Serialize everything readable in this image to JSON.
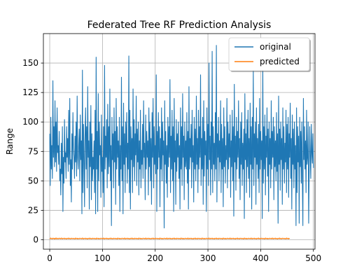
{
  "chart_data": {
    "type": "line",
    "title": "Federated Tree RF Prediction Analysis",
    "xlabel": "",
    "ylabel": "Range",
    "xlim": [
      -12,
      503
    ],
    "ylim": [
      -8,
      175
    ],
    "xticks": [
      0,
      100,
      200,
      300,
      400,
      500
    ],
    "yticks": [
      0,
      25,
      50,
      75,
      100,
      125,
      150
    ],
    "grid": true,
    "legend_position": "top-right",
    "colors": {
      "original": "#1f77b4",
      "predicted": "#ff7f0e"
    },
    "series": [
      {
        "name": "original",
        "x_start": 0,
        "x_step": 1,
        "values": [
          90,
          46,
          104,
          60,
          80,
          52,
          135,
          70,
          96,
          62,
          118,
          66,
          100,
          58,
          112,
          74,
          80,
          64,
          92,
          50,
          60,
          38,
          82,
          56,
          96,
          24,
          70,
          48,
          102,
          66,
          74,
          52,
          96,
          70,
          86,
          58,
          110,
          64,
          120,
          46,
          68,
          32,
          90,
          60,
          108,
          78,
          70,
          52,
          88,
          66,
          100,
          54,
          122,
          70,
          60,
          80,
          94,
          50,
          106,
          68,
          84,
          22,
          144,
          40,
          98,
          70,
          28,
          90,
          112,
          60,
          96,
          44,
          130,
          70,
          84,
          26,
          100,
          62,
          114,
          34,
          90,
          50,
          70,
          60,
          84,
          40,
          110,
          22,
          155,
          60,
          92,
          24,
          124,
          50,
          100,
          72,
          80,
          36,
          106,
          58,
          70,
          40,
          96,
          28,
          148,
          60,
          88,
          70,
          102,
          44,
          115,
          56,
          96,
          62,
          128,
          50,
          80,
          12,
          104,
          68,
          90,
          44,
          112,
          66,
          92,
          30,
          120,
          60,
          96,
          70,
          84,
          46,
          104,
          24,
          80,
          60,
          138,
          50,
          96,
          22,
          116,
          64,
          90,
          40,
          100,
          70,
          108,
          48,
          82,
          60,
          156,
          40,
          110,
          26,
          96,
          68,
          86,
          40,
          128,
          62,
          102,
          50,
          90,
          72,
          122,
          46,
          94,
          66,
          100,
          38,
          84,
          60,
          110,
          44,
          76,
          64,
          98,
          52,
          118,
          70,
          82,
          34,
          106,
          60,
          92,
          70,
          84,
          38,
          112,
          62,
          100,
          50,
          86,
          30,
          108,
          70,
          120,
          44,
          96,
          64,
          80,
          56,
          140,
          24,
          92,
          60,
          108,
          70,
          96,
          28,
          86,
          60,
          112,
          50,
          100,
          72,
          84,
          10,
          118,
          64,
          92,
          48,
          80,
          36,
          104,
          62,
          96,
          70,
          136,
          40,
          88,
          60,
          110,
          50,
          96,
          24,
          120,
          66,
          84,
          30,
          102,
          58,
          90,
          70,
          100,
          52,
          80,
          26,
          112,
          60,
          96,
          46,
          124,
          70,
          88,
          34,
          100,
          62,
          84,
          60,
          108,
          48,
          92,
          26,
          130,
          60,
          86,
          70,
          98,
          44,
          110,
          66,
          80,
          32,
          104,
          60,
          94,
          50,
          122,
          64,
          86,
          40,
          110,
          60,
          96,
          70,
          140,
          46,
          86,
          60,
          104,
          30,
          118,
          54,
          92,
          72,
          84,
          24,
          112,
          60,
          98,
          46,
          150,
          68,
          88,
          38,
          100,
          60,
          160,
          40,
          96,
          64,
          82,
          50,
          108,
          60,
          165,
          32,
          90,
          70,
          104,
          50,
          84,
          66,
          118,
          40,
          98,
          60,
          86,
          28,
          112,
          62,
          96,
          48,
          80,
          68,
          120,
          44,
          100,
          60,
          90,
          70,
          106,
          36,
          84,
          62,
          110,
          50,
          96,
          20,
          132,
          66,
          88,
          42,
          104,
          60,
          92,
          70,
          118,
          52,
          86,
          34,
          100,
          64,
          108,
          46,
          82,
          60,
          94,
          18,
          124,
          68,
          90,
          40,
          102,
          62,
          110,
          52,
          86,
          36,
          116,
          64,
          96,
          26,
          104,
          60,
          144,
          46,
          90,
          70,
          100,
          30,
          112,
          64,
          86,
          52,
          98,
          40,
          120,
          60,
          92,
          68,
          84,
          18,
          150,
          48,
          96,
          60,
          106,
          38,
          88,
          70,
          112,
          54,
          94,
          24,
          100,
          64,
          86,
          44,
          118,
          60,
          92,
          70,
          104,
          34,
          96,
          62,
          84,
          50,
          108,
          58,
          90,
          14,
          122,
          64,
          94,
          42,
          100,
          68,
          86,
          30,
          112,
          60,
          96,
          48,
          82,
          66,
          110,
          40,
          98,
          60,
          104,
          36,
          90,
          70,
          116,
          52,
          86,
          26,
          106,
          64,
          94,
          44,
          100,
          60,
          80,
          12,
          112,
          40,
          96,
          66,
          88,
          14,
          104,
          62,
          92,
          48,
          100,
          50,
          12,
          120,
          68,
          96,
          60,
          84,
          40,
          110,
          64,
          70,
          100,
          14,
          60,
          96,
          70,
          52,
          98,
          74,
          65,
          90,
          61
        ]
      },
      {
        "name": "predicted",
        "x_start": 0,
        "x_step": 1,
        "values": [
          1.2,
          0.8,
          1.5,
          0.9,
          1.1,
          0.7,
          1.4,
          1.0,
          1.3,
          0.6,
          1.2,
          0.9,
          1.6,
          0.8,
          1.0,
          1.3,
          0.7,
          1.1,
          1.4,
          0.9,
          1.2,
          0.8,
          1.5,
          1.0,
          0.7,
          1.3,
          1.1,
          0.9,
          1.4,
          0.8,
          1.2,
          1.0,
          0.6,
          1.3,
          1.1,
          0.9,
          1.5,
          0.8,
          1.2,
          1.0,
          0.7,
          1.4,
          1.1,
          0.9,
          1.3,
          0.8,
          1.2,
          1.0,
          0.6,
          1.5,
          1.1,
          0.9,
          1.3,
          0.7,
          1.2,
          1.0,
          0.8,
          1.4,
          1.1,
          0.9,
          1.2,
          0.8,
          1.5,
          1.0,
          0.7,
          1.3,
          1.1,
          0.9,
          1.4,
          0.8,
          1.2,
          1.0,
          0.6,
          1.3,
          1.1,
          0.9,
          1.5,
          0.8,
          1.2,
          1.0,
          0.7,
          1.4,
          1.1,
          0.9,
          1.3,
          0.8,
          1.2,
          1.0,
          0.6,
          1.5,
          1.1,
          0.9,
          1.3,
          0.7,
          1.2,
          1.0,
          0.8,
          1.4,
          1.1,
          0.9,
          1.2,
          0.8,
          1.5,
          1.0,
          0.7,
          1.3,
          1.1,
          0.9,
          1.4,
          0.8,
          1.2,
          1.0,
          0.6,
          1.3,
          1.1,
          0.9,
          1.5,
          0.8,
          1.2,
          1.0,
          0.7,
          1.4,
          1.1,
          0.9,
          1.3,
          0.8,
          1.2,
          1.0,
          0.6,
          1.5,
          1.1,
          0.9,
          1.3,
          0.7,
          1.2,
          1.0,
          0.8,
          1.4,
          1.1,
          0.9,
          1.2,
          0.8,
          1.5,
          1.0,
          0.7,
          1.3,
          1.1,
          0.9,
          1.4,
          0.8,
          1.2,
          1.0,
          0.6,
          1.3,
          1.1,
          0.9,
          1.5,
          0.8,
          1.2,
          1.0,
          0.7,
          1.4,
          1.1,
          0.9,
          1.3,
          0.8,
          1.2,
          1.0,
          0.6,
          1.5,
          1.1,
          0.9,
          1.3,
          0.7,
          1.2,
          1.0,
          0.8,
          1.4,
          1.1,
          0.9,
          1.2,
          0.8,
          1.5,
          1.0,
          0.7,
          1.3,
          1.1,
          0.9,
          1.4,
          0.8,
          1.2,
          1.0,
          0.6,
          1.3,
          1.1,
          0.9,
          1.5,
          0.8,
          1.2,
          1.0,
          0.7,
          1.4,
          1.1,
          0.9,
          1.3,
          0.8,
          1.2,
          1.0,
          0.6,
          1.5,
          1.1,
          0.9,
          1.3,
          0.7,
          1.2,
          1.0,
          0.8,
          1.4,
          1.1,
          0.9,
          1.2,
          0.8,
          1.5,
          1.0,
          0.7,
          1.3,
          1.1,
          0.9,
          1.4,
          0.8,
          1.2,
          1.0,
          0.6,
          1.3,
          1.1,
          0.9,
          1.5,
          0.8,
          1.2,
          1.0,
          0.7,
          1.4,
          1.1,
          0.9,
          1.3,
          0.8,
          1.2,
          1.0,
          0.6,
          1.5,
          1.1,
          0.9,
          1.3,
          0.7,
          1.2,
          1.0,
          0.8,
          1.4,
          1.1,
          0.9,
          1.2,
          0.8,
          1.5,
          1.0,
          0.7,
          1.3,
          1.1,
          0.9,
          1.4,
          0.8,
          1.2,
          1.0,
          0.6,
          1.3,
          1.1,
          0.9,
          1.5,
          0.8,
          1.2,
          1.0,
          0.7,
          1.4,
          1.1,
          0.9,
          1.3,
          0.8,
          1.2,
          1.0,
          0.6,
          1.5,
          1.1,
          0.9,
          1.3,
          0.7,
          1.2,
          1.0,
          0.8,
          1.4,
          1.1,
          0.9,
          1.2,
          0.8,
          1.5,
          1.0,
          0.7,
          1.3,
          1.1,
          0.9,
          1.4,
          0.8,
          1.2,
          1.0,
          0.6,
          1.3,
          1.1,
          0.9,
          1.5,
          0.8,
          1.2,
          1.0,
          0.7,
          1.4,
          1.1,
          0.9,
          1.3,
          0.8,
          1.2,
          1.0,
          0.6,
          1.5,
          1.1,
          0.9,
          1.3,
          0.7,
          1.2,
          1.0,
          0.8,
          1.4,
          1.1,
          0.9,
          1.2,
          0.8,
          1.5,
          1.0,
          0.7,
          1.3,
          1.1,
          0.9,
          1.4,
          0.8,
          1.2,
          1.0,
          0.6,
          1.3,
          1.1,
          0.9,
          1.5,
          0.8,
          1.2,
          1.0,
          0.7,
          1.4,
          1.1,
          0.9,
          1.3,
          0.8,
          1.2,
          1.0,
          0.6,
          1.5,
          1.1,
          0.9,
          1.3,
          0.7,
          1.2,
          1.0,
          0.8,
          1.4,
          1.1,
          0.9,
          1.2,
          0.8,
          1.5,
          1.0,
          0.7,
          1.3,
          1.1,
          0.9,
          1.4,
          0.8,
          1.2,
          1.0,
          0.6,
          1.3,
          1.1,
          0.9,
          1.5,
          0.8,
          1.2,
          1.0,
          0.7,
          1.4,
          1.1,
          0.9,
          1.3,
          0.8,
          1.2,
          1.0,
          0.6,
          1.5,
          1.1,
          0.9,
          1.3,
          0.7,
          1.2,
          1.0,
          0.8,
          1.4,
          1.1,
          0.9,
          1.2,
          0.8,
          1.5,
          1.0,
          0.7,
          1.3,
          1.1,
          0.9,
          1.4,
          0.8,
          1.2,
          1.0,
          0.6,
          1.3,
          1.1,
          0.9,
          1.5,
          0.8,
          1.2,
          1.0,
          0.7,
          1.4,
          1.1,
          0.9,
          1.3,
          0.8,
          1.2,
          1.0,
          0.6,
          1.5,
          1.1,
          0.9,
          1.3,
          0.7,
          1.2,
          1.0
        ]
      }
    ]
  }
}
